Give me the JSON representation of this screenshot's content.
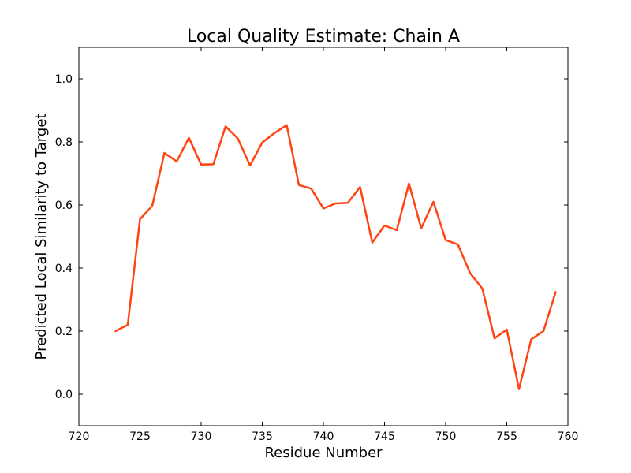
{
  "chart_data": {
    "type": "line",
    "title": "Local Quality Estimate: Chain A",
    "xlabel": "Residue Number",
    "ylabel": "Predicted Local Similarity to Target",
    "xlim": [
      720,
      760
    ],
    "ylim": [
      -0.1,
      1.1
    ],
    "xticks": [
      720,
      725,
      730,
      735,
      740,
      745,
      750,
      755,
      760
    ],
    "yticks": [
      0.0,
      0.2,
      0.4,
      0.6,
      0.8,
      1.0
    ],
    "xtick_labels": [
      "720",
      "725",
      "730",
      "735",
      "740",
      "745",
      "750",
      "755",
      "760"
    ],
    "ytick_labels": [
      "0.0",
      "0.2",
      "0.4",
      "0.6",
      "0.8",
      "1.0"
    ],
    "grid": false,
    "series": [
      {
        "color": "#ff4411",
        "x": [
          723,
          724,
          725,
          726,
          727,
          728,
          729,
          730,
          731,
          732,
          733,
          734,
          735,
          736,
          737,
          738,
          739,
          740,
          741,
          742,
          743,
          744,
          745,
          746,
          747,
          748,
          749,
          750,
          751,
          752,
          753,
          754,
          755,
          756,
          757,
          758,
          759
        ],
        "y": [
          0.2,
          0.22,
          0.555,
          0.597,
          0.765,
          0.738,
          0.813,
          0.728,
          0.729,
          0.849,
          0.811,
          0.725,
          0.798,
          0.828,
          0.853,
          0.663,
          0.652,
          0.589,
          0.605,
          0.607,
          0.657,
          0.481,
          0.535,
          0.52,
          0.668,
          0.526,
          0.61,
          0.489,
          0.475,
          0.384,
          0.335,
          0.177,
          0.205,
          0.016,
          0.174,
          0.2,
          0.324
        ]
      }
    ]
  }
}
